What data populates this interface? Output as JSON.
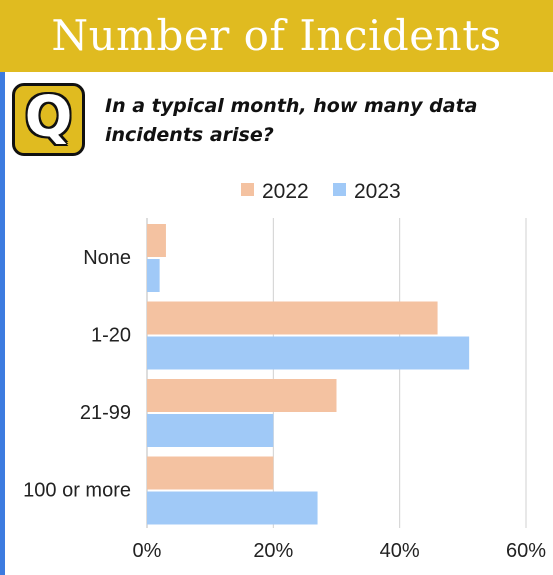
{
  "header": {
    "title": "Number of Incidents"
  },
  "badge": {
    "letter": "Q",
    "icon": "question-badge-icon"
  },
  "question": {
    "text": "In a typical month, how many data incidents arise?"
  },
  "colors": {
    "header_bg": "#e0bb20",
    "accent_strip": "#3c7be0",
    "series_2022": "#f4c2a1",
    "series_2023": "#a0c9f7",
    "grid": "#d0d0d0"
  },
  "chart_data": {
    "type": "bar",
    "orientation": "horizontal",
    "title": "",
    "xlabel": "",
    "ylabel": "",
    "categories": [
      "None",
      "1-20",
      "21-99",
      "100 or more"
    ],
    "series": [
      {
        "name": "2022",
        "values": [
          3,
          46,
          30,
          20
        ]
      },
      {
        "name": "2023",
        "values": [
          2,
          51,
          20,
          27
        ]
      }
    ],
    "xlim": [
      0,
      60
    ],
    "x_ticks": [
      "0%",
      "20%",
      "40%",
      "60%"
    ],
    "x_tick_values": [
      0,
      20,
      40,
      60
    ],
    "unit": "%",
    "grid": true,
    "legend_placement": "top"
  }
}
